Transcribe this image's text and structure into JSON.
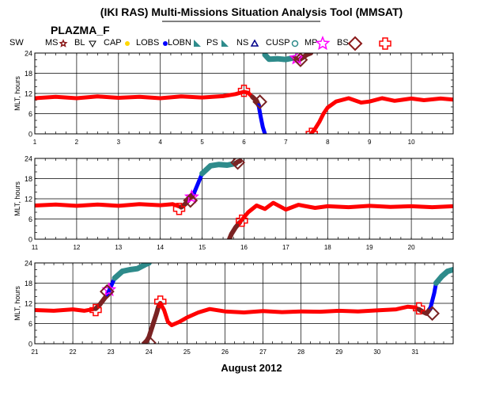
{
  "title": "(IKI RAS) Multi-Missions Situation Analysis Tool (MMSAT)",
  "mission": "PLAZMA_F",
  "xlabel": "August 2012",
  "legend": [
    {
      "label": "SW",
      "color": "#ff0000",
      "marker": "none"
    },
    {
      "label": "MS",
      "color": "#8b1a1a",
      "marker": "star-small"
    },
    {
      "label": "BL",
      "color": "#000000",
      "marker": "triangle-down"
    },
    {
      "label": "CAP",
      "color": "#ffd700",
      "marker": "dot"
    },
    {
      "label": "LOBS",
      "color": "#0000ff",
      "marker": "dot"
    },
    {
      "label": "LOBN",
      "color": "#2e8b8b",
      "marker": "wedge"
    },
    {
      "label": "PS",
      "color": "#2e8b8b",
      "marker": "wedge"
    },
    {
      "label": "NS",
      "color": "#00008b",
      "marker": "triangle-up"
    },
    {
      "label": "CUSP",
      "color": "#2e8b8b",
      "marker": "circle"
    },
    {
      "label": "MP",
      "color": "#ff00ff",
      "marker": "star"
    },
    {
      "label": "BS",
      "color": "#8b1a1a",
      "marker": "diamond"
    },
    {
      "label": "",
      "color": "#ff0000",
      "marker": "cross"
    }
  ],
  "colors": {
    "sw": "#ff0000",
    "ms": "#7a2323",
    "lobs": "#0000ff",
    "ps": "#2e8b8b",
    "mp": "#ff00ff",
    "cap": "#ffd700"
  },
  "chart_data": [
    {
      "type": "line",
      "ylabel": "MLT, hours",
      "xlim": [
        1,
        11
      ],
      "ylim": [
        0,
        24
      ],
      "xticks": [
        "1",
        "2",
        "3",
        "4",
        "5",
        "6",
        "7",
        "8",
        "9",
        "10"
      ],
      "yticks": [
        "0",
        "6",
        "12",
        "18",
        "24"
      ],
      "grid": true,
      "series": [
        {
          "region": "SW",
          "x": [
            1.0,
            1.5,
            2.0,
            2.5,
            3.0,
            3.5,
            4.0,
            4.5,
            5.0,
            5.5,
            5.8,
            6.0,
            6.1,
            6.2,
            6.3
          ],
          "y": [
            10.6,
            11.0,
            10.6,
            11.1,
            10.7,
            11.0,
            10.6,
            11.1,
            10.8,
            11.2,
            11.8,
            12.5,
            12.2,
            11.0,
            9.8
          ]
        },
        {
          "region": "SW",
          "x": [
            7.6,
            7.7,
            7.8,
            7.9,
            8.0,
            8.2,
            8.5,
            8.8,
            9.0,
            9.3,
            9.6,
            10.0,
            10.3,
            10.7,
            11.0
          ],
          "y": [
            0.0,
            1.5,
            3.5,
            6.0,
            7.8,
            9.6,
            10.6,
            9.3,
            9.6,
            10.6,
            9.8,
            10.5,
            10.0,
            10.5,
            10.2
          ]
        },
        {
          "region": "MS",
          "x": [
            6.2,
            6.3,
            6.35
          ],
          "y": [
            11.0,
            9.8,
            8.5
          ]
        },
        {
          "region": "LOBS",
          "x": [
            6.35,
            6.4,
            6.45,
            6.5
          ],
          "y": [
            8.5,
            5.0,
            2.0,
            0.0
          ]
        },
        {
          "region": "PS",
          "x": [
            6.5,
            6.6,
            6.8,
            7.0,
            7.2
          ],
          "y": [
            23.5,
            22.2,
            22.3,
            22.1,
            22.6
          ]
        },
        {
          "region": "MS",
          "x": [
            7.2,
            7.3,
            7.4,
            7.5,
            7.6
          ],
          "y": [
            22.6,
            21.8,
            22.6,
            23.5,
            24.0
          ]
        }
      ],
      "crossings": [
        {
          "type": "MP",
          "x": [
            7.26
          ],
          "y": [
            22.5
          ]
        },
        {
          "type": "BS",
          "x": [
            6.38,
            7.35
          ],
          "y": [
            9.5,
            22.0
          ]
        },
        {
          "type": "SW",
          "x": [
            6.0,
            7.62
          ],
          "y": [
            12.8,
            0.0
          ]
        }
      ]
    },
    {
      "type": "line",
      "ylabel": "MLT, hours",
      "xlim": [
        11,
        21
      ],
      "ylim": [
        0,
        24
      ],
      "xticks": [
        "11",
        "12",
        "13",
        "14",
        "15",
        "16",
        "17",
        "18",
        "19",
        "20"
      ],
      "yticks": [
        "0",
        "6",
        "12",
        "18",
        "24"
      ],
      "grid": true,
      "series": [
        {
          "region": "SW",
          "x": [
            11.0,
            11.5,
            12.0,
            12.5,
            13.0,
            13.5,
            14.0,
            14.3,
            14.5
          ],
          "y": [
            10.0,
            10.3,
            9.9,
            10.3,
            9.9,
            10.4,
            10.1,
            10.4,
            9.5
          ]
        },
        {
          "region": "MS",
          "x": [
            14.5,
            14.6,
            14.7,
            14.8
          ],
          "y": [
            9.5,
            10.5,
            12.0,
            13.5
          ]
        },
        {
          "region": "LOBS",
          "x": [
            14.8,
            14.9,
            15.0
          ],
          "y": [
            13.5,
            16.5,
            19.5
          ]
        },
        {
          "region": "PS",
          "x": [
            15.0,
            15.2,
            15.4,
            15.6,
            15.8
          ],
          "y": [
            19.5,
            21.8,
            22.2,
            22.0,
            22.5
          ]
        },
        {
          "region": "MS",
          "x": [
            15.8,
            15.85,
            15.9
          ],
          "y": [
            22.5,
            23.0,
            23.2
          ]
        },
        {
          "region": "MS",
          "x": [
            15.65,
            15.7,
            15.8,
            15.9
          ],
          "y": [
            0.0,
            1.5,
            3.5,
            5.0
          ]
        },
        {
          "region": "SW",
          "x": [
            15.9,
            16.0,
            16.1,
            16.3,
            16.5,
            16.7,
            17.0,
            17.3,
            17.7,
            18.0,
            18.5,
            19.0,
            19.5,
            20.0,
            20.5,
            21.0
          ],
          "y": [
            5.0,
            6.5,
            8.0,
            10.0,
            9.0,
            10.8,
            8.8,
            10.2,
            9.3,
            9.8,
            9.5,
            9.9,
            9.6,
            9.8,
            9.5,
            9.8
          ]
        }
      ],
      "crossings": [
        {
          "type": "MP",
          "x": [
            14.75
          ],
          "y": [
            12.5
          ]
        },
        {
          "type": "BS",
          "x": [
            14.72,
            15.85
          ],
          "y": [
            11.5,
            22.8
          ]
        },
        {
          "type": "SW",
          "x": [
            14.45,
            15.95
          ],
          "y": [
            9.0,
            5.5
          ]
        }
      ]
    },
    {
      "type": "line",
      "ylabel": "MLT, hours",
      "xlim": [
        21,
        32
      ],
      "ylim": [
        0,
        24
      ],
      "xticks": [
        "21",
        "22",
        "23",
        "24",
        "25",
        "26",
        "27",
        "28",
        "29",
        "30",
        "31"
      ],
      "yticks": [
        "0",
        "6",
        "12",
        "18",
        "24"
      ],
      "grid": true,
      "series": [
        {
          "region": "SW",
          "x": [
            21.0,
            21.5,
            22.0,
            22.3,
            22.6
          ],
          "y": [
            10.0,
            9.8,
            10.2,
            9.8,
            10.4
          ]
        },
        {
          "region": "MS",
          "x": [
            22.6,
            22.7,
            22.8,
            22.9
          ],
          "y": [
            10.4,
            11.5,
            13.0,
            14.5
          ]
        },
        {
          "region": "LOBS",
          "x": [
            22.9,
            23.0,
            23.1
          ],
          "y": [
            14.5,
            17.0,
            19.5
          ]
        },
        {
          "region": "PS",
          "x": [
            23.1,
            23.3,
            23.5,
            23.7,
            23.9,
            24.0
          ],
          "y": [
            19.5,
            21.5,
            22.0,
            22.3,
            23.5,
            24.0
          ]
        },
        {
          "region": "MS",
          "x": [
            23.9,
            24.0,
            24.1,
            24.2,
            24.25,
            24.3
          ],
          "y": [
            0.0,
            2.0,
            5.5,
            9.0,
            11.0,
            12.0
          ]
        },
        {
          "region": "SW",
          "x": [
            24.3,
            24.4,
            24.5,
            24.6,
            24.8,
            25.0,
            25.3,
            25.6,
            26.0,
            26.5,
            27.0,
            27.5,
            28.0,
            28.5,
            29.0,
            29.5,
            30.0,
            30.5,
            30.8,
            31.0,
            31.1
          ],
          "y": [
            12.0,
            10.0,
            6.5,
            5.5,
            6.5,
            7.8,
            9.3,
            10.3,
            9.6,
            9.3,
            9.7,
            9.4,
            9.6,
            9.5,
            9.8,
            9.6,
            9.9,
            10.2,
            11.0,
            10.8,
            10.2
          ]
        },
        {
          "region": "MS",
          "x": [
            31.1,
            31.2,
            31.3,
            31.4
          ],
          "y": [
            10.2,
            9.5,
            9.0,
            10.5
          ]
        },
        {
          "region": "LOBS",
          "x": [
            31.4,
            31.5,
            31.55
          ],
          "y": [
            10.5,
            15.0,
            18.0
          ]
        },
        {
          "region": "PS",
          "x": [
            31.55,
            31.7,
            31.85,
            32.0
          ],
          "y": [
            18.0,
            20.0,
            21.5,
            22.0
          ]
        }
      ],
      "crossings": [
        {
          "type": "MP",
          "x": [
            22.95
          ],
          "y": [
            16.0
          ]
        },
        {
          "type": "BS",
          "x": [
            22.9,
            24.0,
            31.45
          ],
          "y": [
            15.5,
            0.3,
            9.0
          ]
        },
        {
          "type": "SW",
          "x": [
            22.6,
            24.3,
            31.1
          ],
          "y": [
            10.0,
            12.5,
            10.5
          ]
        }
      ]
    }
  ]
}
